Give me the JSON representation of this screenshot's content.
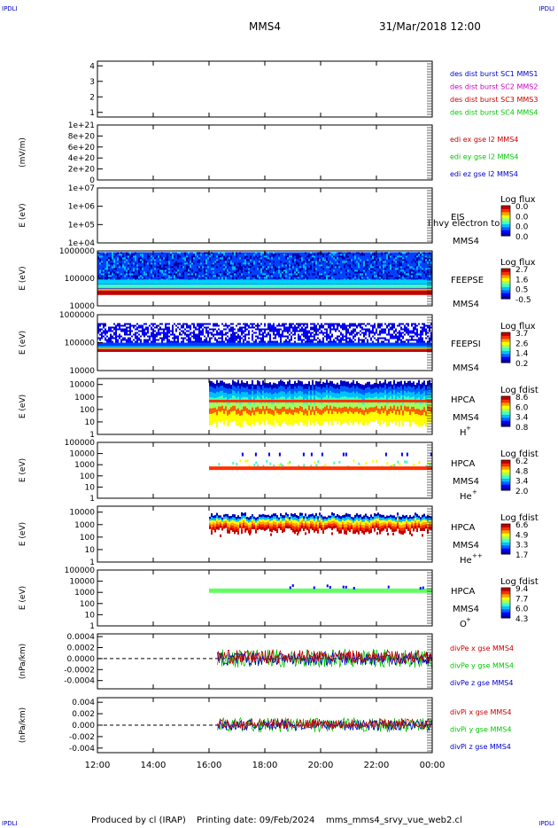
{
  "header": {
    "corner_tl": "IPDLI",
    "corner_tr": "IPDLI",
    "corner_bl": "IPDLI",
    "corner_br": "IPDLI",
    "mission": "MMS4",
    "date": "31/Mar/2018 12:00"
  },
  "footer": {
    "produced": "Produced by cl (IRAP)",
    "printing": "Printing date: 09/Feb/2024",
    "filename": "mms_mms4_srvy_vue_web2.cl"
  },
  "chart_data": [
    {
      "id": "sc-position",
      "type": "line",
      "yticks": [
        "4",
        "3",
        "2",
        "1"
      ],
      "ylim": [
        0.7,
        4.3
      ],
      "legend": [
        {
          "text": "des dist burst SC1 MMS1",
          "color": "#0000c8"
        },
        {
          "text": "des dist burst SC2 MMS2",
          "color": "#c800c8"
        },
        {
          "text": "des dist burst SC3 MMS3",
          "color": "#c80000"
        },
        {
          "text": "des dist burst SC4 MMS4",
          "color": "#00c800"
        }
      ]
    },
    {
      "id": "edi-efield",
      "type": "line",
      "ylabel": "(mV/m)",
      "yticks": [
        "1e+21",
        "8e+20",
        "6e+20",
        "4e+20",
        "2e+20",
        "0"
      ],
      "ylim": [
        0,
        1e+21
      ],
      "legend": [
        {
          "text": "edi ex gse l2 MMS4",
          "color": "#c80000"
        },
        {
          "text": "edi ey gse l2 MMS4",
          "color": "#00c800"
        },
        {
          "text": "edi ez gse l2 MMS4",
          "color": "#0000c8"
        }
      ]
    },
    {
      "id": "eis",
      "type": "heatmap",
      "ylabel": "E (eV)",
      "yscale": "log",
      "yticks": [
        "1e+07",
        "1e+06",
        "1e+05",
        "1e+04"
      ],
      "ylim": [
        10000.0,
        10000000.0
      ],
      "instrument": [
        "EIS",
        "MMS4"
      ],
      "overlay": "l hvy electron to",
      "colorbar": {
        "title": "Log flux",
        "ticks": [
          "0.0",
          "0.0",
          "0.0",
          "0.0"
        ]
      }
    },
    {
      "id": "feepse",
      "type": "heatmap",
      "ylabel": "E (eV)",
      "yscale": "log",
      "yticks": [
        "1000000",
        "100000",
        "10000"
      ],
      "ylim": [
        10000,
        1000000
      ],
      "instrument": [
        "FEEPSE",
        "MMS4"
      ],
      "colorbar": {
        "title": "Log flux",
        "ticks": [
          "2.7",
          "1.6",
          "0.5",
          "-0.5"
        ]
      }
    },
    {
      "id": "feepsi",
      "type": "heatmap",
      "ylabel": "E (eV)",
      "yscale": "log",
      "yticks": [
        "1000000",
        "100000",
        "10000"
      ],
      "ylim": [
        10000,
        1000000
      ],
      "instrument": [
        "FEEPSI",
        "MMS4"
      ],
      "colorbar": {
        "title": "Log flux",
        "ticks": [
          "3.7",
          "2.6",
          "1.4",
          "0.2"
        ]
      }
    },
    {
      "id": "hpca-h",
      "type": "heatmap",
      "ylabel": "E (eV)",
      "yscale": "log",
      "yticks": [
        "10000",
        "1000",
        "100",
        "10",
        "1"
      ],
      "ylim": [
        1,
        30000
      ],
      "instrument": [
        "HPCA",
        "MMS4"
      ],
      "species": "H",
      "species_sup": "+",
      "colorbar": {
        "title": "Log fdist",
        "ticks": [
          "8.6",
          "6.0",
          "3.4",
          "0.8"
        ]
      }
    },
    {
      "id": "hpca-he",
      "type": "heatmap",
      "ylabel": "E (eV)",
      "yscale": "log",
      "yticks": [
        "100000",
        "10000",
        "1000",
        "100",
        "10",
        "1"
      ],
      "ylim": [
        1,
        100000
      ],
      "instrument": [
        "HPCA",
        "MMS4"
      ],
      "species": "He",
      "species_sup": "+",
      "colorbar": {
        "title": "Log fdist",
        "ticks": [
          "6.2",
          "4.8",
          "3.4",
          "2.0"
        ]
      }
    },
    {
      "id": "hpca-he2",
      "type": "heatmap",
      "ylabel": "E (eV)",
      "yscale": "log",
      "yticks": [
        "10000",
        "1000",
        "100",
        "10",
        "1"
      ],
      "ylim": [
        1,
        30000
      ],
      "instrument": [
        "HPCA",
        "MMS4"
      ],
      "species": "He",
      "species_sup": "++",
      "colorbar": {
        "title": "Log fdist",
        "ticks": [
          "6.6",
          "4.9",
          "3.3",
          "1.7"
        ]
      }
    },
    {
      "id": "hpca-o",
      "type": "heatmap",
      "ylabel": "E (eV)",
      "yscale": "log",
      "yticks": [
        "100000",
        "10000",
        "1000",
        "100",
        "10",
        "1"
      ],
      "ylim": [
        1,
        100000
      ],
      "instrument": [
        "HPCA",
        "MMS4"
      ],
      "species": "O",
      "species_sup": "+",
      "colorbar": {
        "title": "Log fdist",
        "ticks": [
          "9.4",
          "7.7",
          "6.0",
          "4.3"
        ]
      }
    },
    {
      "id": "divpe",
      "type": "line",
      "ylabel": "(nPa/km)",
      "yticks": [
        "0.0004",
        "0.0002",
        "0.0000",
        "-0.0002",
        "-0.0004"
      ],
      "ylim": [
        -0.00055,
        0.00045
      ],
      "legend": [
        {
          "text": "divPe x gse MMS4",
          "color": "#c80000"
        },
        {
          "text": "divPe y gse MMS4",
          "color": "#00c800"
        },
        {
          "text": "divPe z gse MMS4",
          "color": "#0000c8"
        }
      ]
    },
    {
      "id": "divpi",
      "type": "line",
      "ylabel": "(nPa/km)",
      "yticks": [
        "0.004",
        "0.002",
        "0.000",
        "-0.002",
        "-0.004"
      ],
      "ylim": [
        -0.0048,
        0.0048
      ],
      "legend": [
        {
          "text": "divPi x gse MMS4",
          "color": "#c80000"
        },
        {
          "text": "divPi y gse MMS4",
          "color": "#00c800"
        },
        {
          "text": "divPi z gse MMS4",
          "color": "#0000c8"
        }
      ]
    }
  ],
  "x_axis": {
    "ticks": [
      "12:00",
      "14:00",
      "16:00",
      "18:00",
      "20:00",
      "22:00",
      "00:00"
    ],
    "range_hours": [
      12,
      24
    ]
  }
}
